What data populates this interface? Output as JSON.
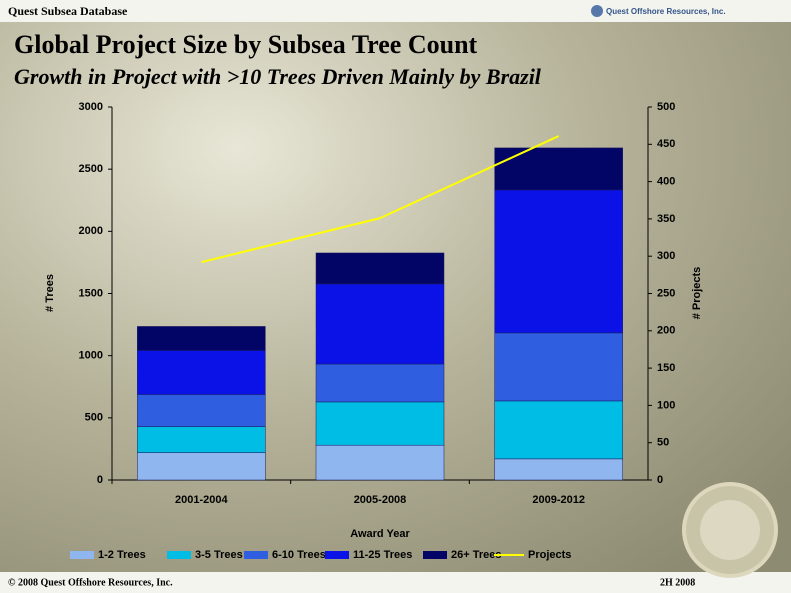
{
  "header": {
    "database": "Quest Subsea Database",
    "logo": "Quest Offshore Resources, Inc."
  },
  "footer": {
    "copyright": "© 2008 Quest Offshore Resources, Inc.",
    "period": "2H 2008"
  },
  "chart_data": {
    "type": "bar",
    "stacked": true,
    "title": "Global Project Size by Subsea Tree Count",
    "subtitle": "Growth in Project with >10 Trees Driven Mainly by Brazil",
    "x_label": "Award Year",
    "y_label": "# Trees",
    "y2_label": "# Projects",
    "categories": [
      "2001-2004",
      "2005-2008",
      "2009-2012"
    ],
    "series": [
      {
        "name": "1-2 Trees",
        "color": "#8fb6ee",
        "values": [
          220,
          280,
          170
        ]
      },
      {
        "name": "3-5 Trees",
        "color": "#00bde6",
        "values": [
          210,
          348,
          466
        ]
      },
      {
        "name": "6-10 Trees",
        "color": "#2f5fe0",
        "values": [
          258,
          305,
          547
        ]
      },
      {
        "name": "11-25 Trees",
        "color": "#0a12e8",
        "values": [
          354,
          644,
          1150
        ]
      },
      {
        "name": "26+ Trees",
        "color": "#020466",
        "values": [
          193,
          249,
          338
        ]
      },
      {
        "name": "Projects",
        "color": "#ffff00",
        "type": "line",
        "axis": "y2",
        "values": [
          292,
          351,
          461
        ]
      }
    ],
    "ylim": [
      0,
      3000
    ],
    "yticks": [
      0,
      500,
      1000,
      1500,
      2000,
      2500,
      3000
    ],
    "y2lim": [
      0,
      500
    ],
    "y2ticks": [
      0,
      50,
      100,
      150,
      200,
      250,
      300,
      350,
      400,
      450,
      500
    ],
    "legend": "bottom"
  }
}
